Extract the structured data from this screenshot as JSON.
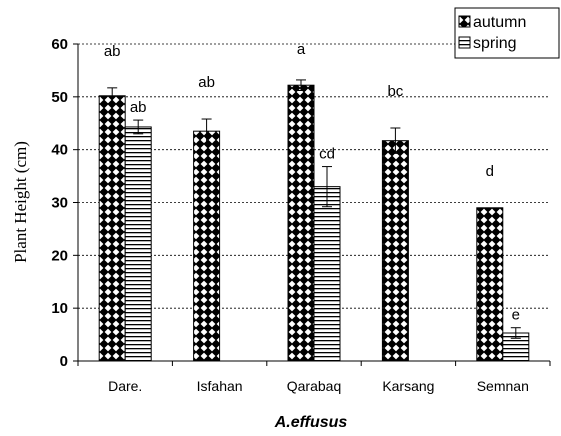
{
  "chart_data": {
    "type": "bar",
    "categories": [
      "Dare.",
      "Isfahan",
      "Qarabaq",
      "Karsang",
      "Semnan"
    ],
    "series": [
      {
        "name": "autumn",
        "values": [
          50.2,
          43.5,
          52.2,
          41.7,
          29.0
        ],
        "errors": [
          1.5,
          2.3,
          1.0,
          2.4,
          0
        ],
        "letters": [
          "ab",
          "ab",
          "a",
          "bc",
          "d"
        ]
      },
      {
        "name": "spring",
        "values": [
          44.3,
          null,
          33.0,
          null,
          5.3
        ],
        "errors": [
          1.3,
          null,
          3.8,
          null,
          1.0
        ],
        "letters": [
          "ab",
          "",
          "cd",
          "",
          "e"
        ]
      }
    ],
    "ylabel": "Plant Height (cm)",
    "xlabel": "A.effusus",
    "ylim": [
      0,
      60
    ],
    "yticks": [
      0,
      10,
      20,
      30,
      40,
      50,
      60
    ],
    "grid": "horizontal dashed",
    "legend_position": "top-right"
  }
}
